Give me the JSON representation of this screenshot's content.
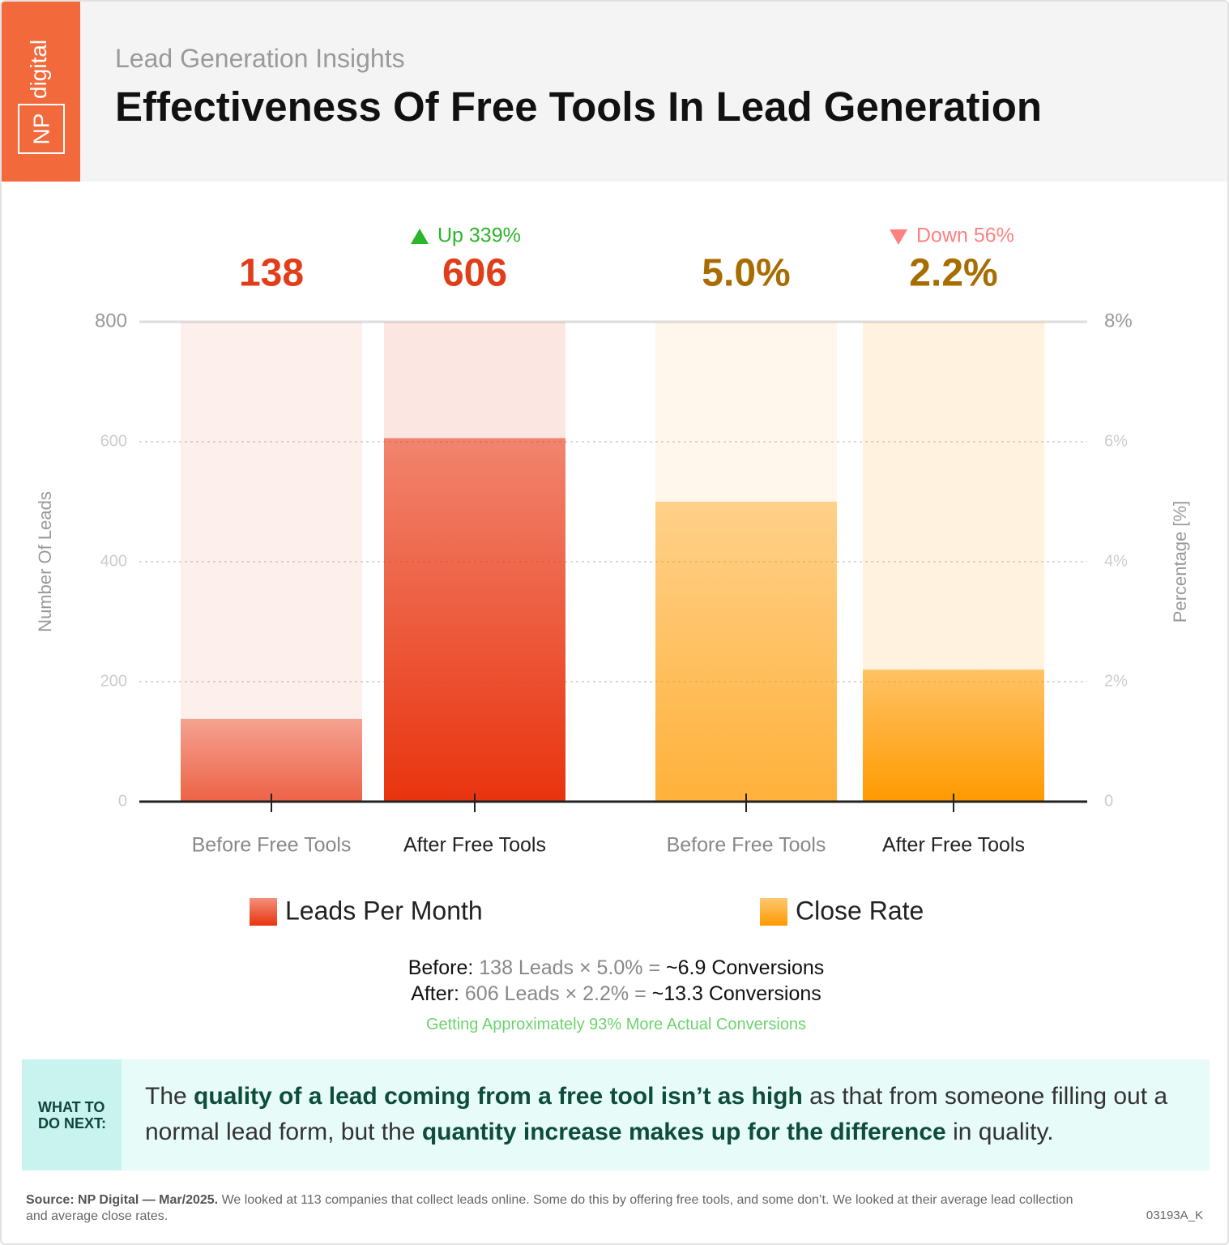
{
  "brand": {
    "np": "NP",
    "word": "digital"
  },
  "chart_data": {
    "type": "bar",
    "subtitle": "Lead Generation Insights",
    "title": "Effectiveness Of Free Tools In Lead Generation",
    "ylabel": "Number Of Leads",
    "y2label": "Percentage [%]",
    "categories": [
      "Before Free Tools",
      "After Free Tools",
      "Before Free Tools",
      "After Free Tools"
    ],
    "series": [
      {
        "name": "Leads Per Month",
        "color": "#e8340f",
        "values": [
          138,
          606,
          null,
          null
        ]
      },
      {
        "name": "Close Rate",
        "color": "#ff9a00",
        "axis": "y2",
        "values": [
          null,
          null,
          5.0,
          2.2
        ],
        "value_labels": [
          null,
          null,
          "5.0%",
          "2.2%"
        ]
      }
    ],
    "ylim": [
      0,
      800
    ],
    "yticks": [
      0,
      200,
      400,
      600,
      800
    ],
    "y2lim": [
      0,
      8
    ],
    "y2ticks": [
      0,
      {
        "value": 2,
        "label": "2%"
      },
      {
        "value": 4,
        "label": "4%"
      },
      {
        "value": 6,
        "label": "6%"
      },
      {
        "value": 8,
        "label": "8%"
      }
    ],
    "grid": true,
    "annotations": [
      "Up 339%",
      "Down 56%"
    ]
  },
  "summary": {
    "before": [
      "Before:",
      "138 Leads × 5.0% =",
      "~6.9 Conversions"
    ],
    "after": [
      "After:",
      "606 Leads × 2.2% =",
      "~13.3 Conversions"
    ],
    "note": "Getting Approximately 93% More Actual Conversions"
  },
  "callout": {
    "label": [
      "WHAT TO",
      "DO NEXT:"
    ],
    "text": [
      "The",
      "quality of a lead coming from a free tool isn’t as high",
      "as that from someone filling out a normal lead form, but the",
      "quantity increase makes up for the difference",
      "in quality."
    ]
  },
  "source": {
    "bold": "Source: NP Digital — Mar/2025.",
    "text": "We looked at 113 companies that collect leads online. Some do this by offering free tools, and some don’t. We looked at their average lead collection and average close rates.",
    "code": "03193A_K"
  }
}
